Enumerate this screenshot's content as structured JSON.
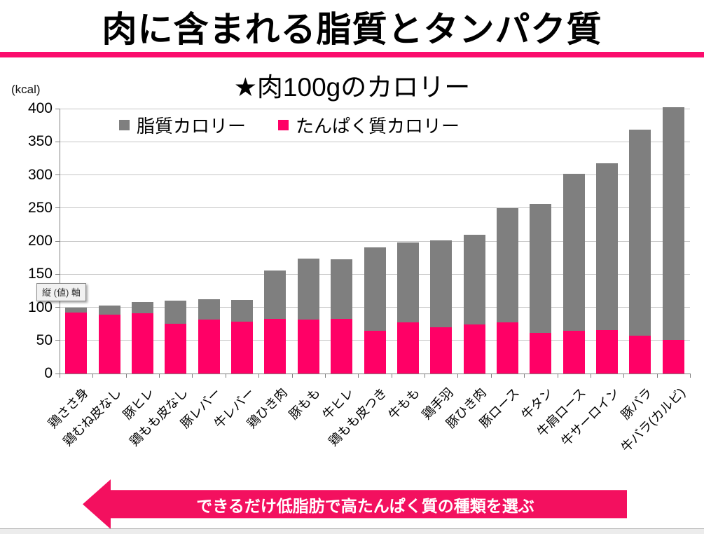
{
  "header": {
    "title": "肉に含まれる脂質とタンパク質"
  },
  "chart": {
    "subtitle": "★肉100gのカロリー",
    "unit_label": "(kcal)",
    "axis_tooltip": "縦 (値) 軸"
  },
  "colors": {
    "fat_gray": "#7f7f7f",
    "protein_pink": "#ff0066",
    "accent_rule": "#fb0d6d",
    "arrow_pink": "#f3105f",
    "grid": "#c6c6c6",
    "axis": "#7f7f7f"
  },
  "chart_data": {
    "type": "bar",
    "stacked": true,
    "title": "★肉100gのカロリー",
    "ylabel": "(kcal)",
    "xlabel": "",
    "ylim": [
      0,
      400
    ],
    "ytick_step": 50,
    "grid": true,
    "legend_position": "top-center",
    "categories": [
      "鶏ささ身",
      "鶏むね皮なし",
      "豚ヒレ",
      "鶏もも皮なし",
      "豚レバー",
      "牛レバー",
      "鶏ひき肉",
      "豚もも",
      "牛ヒレ",
      "鶏もも皮つき",
      "牛もも",
      "鶏手羽",
      "豚ひき肉",
      "豚ロース",
      "牛タン",
      "牛肩ロース",
      "牛サーロイン",
      "豚バラ",
      "牛バラ(カルビ)"
    ],
    "series": [
      {
        "name": "脂質カロリー",
        "color": "#7f7f7f",
        "values": [
          7,
          14,
          17,
          35,
          30,
          33,
          73,
          92,
          89,
          126,
          121,
          131,
          136,
          173,
          195,
          237,
          251,
          311,
          351
        ]
      },
      {
        "name": "たんぱく質カロリー",
        "color": "#ff0066",
        "values": [
          92,
          89,
          91,
          75,
          82,
          78,
          83,
          82,
          83,
          65,
          77,
          70,
          74,
          77,
          61,
          65,
          66,
          57,
          51
        ]
      }
    ],
    "totals": [
      99,
      103,
      108,
      110,
      112,
      111,
      156,
      174,
      172,
      191,
      198,
      201,
      210,
      250,
      256,
      302,
      317,
      368,
      402
    ]
  },
  "footer": {
    "arrow_text": "できるだけ低脂肪で高たんぱく質の種類を選ぶ"
  }
}
